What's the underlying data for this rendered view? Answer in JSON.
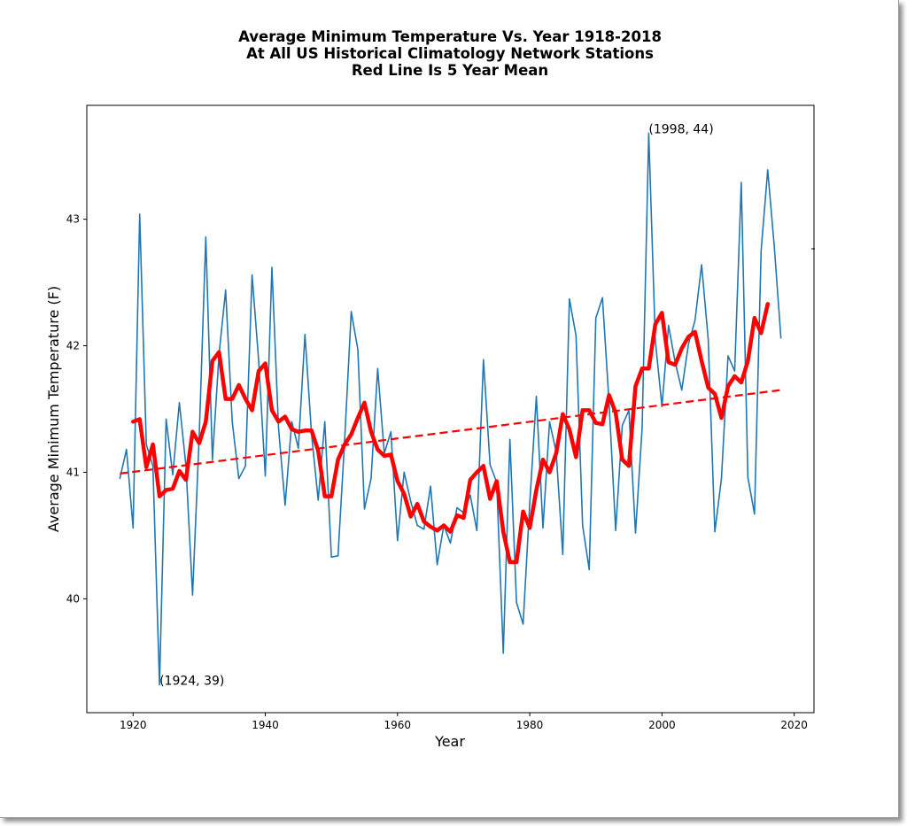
{
  "chart_data": {
    "type": "line",
    "title": [
      "Average Minimum Temperature Vs. Year 1918-2018",
      "At All US Historical Climatology Network Stations",
      "Red Line Is 5 Year Mean"
    ],
    "xlabel": "Year",
    "ylabel": "Average Minimum Temperature (F)",
    "xlim": [
      1913,
      2023
    ],
    "ylim": [
      39.1,
      43.9
    ],
    "xticks": [
      1920,
      1940,
      1960,
      1980,
      2000,
      2020
    ],
    "yticks": [
      40,
      41,
      42,
      43
    ],
    "grid": false,
    "colors": {
      "annual": "#1f77b4",
      "mean": "#ff0000",
      "trend": "#ff0000"
    },
    "annotations": [
      {
        "text": "(1998, 44)",
        "x": 1998,
        "y": 43.68
      },
      {
        "text": "(1924, 39)",
        "x": 1924,
        "y": 39.32
      }
    ],
    "series": [
      {
        "style": "thin-line",
        "x_start": 1918,
        "values": [
          40.95,
          41.18,
          40.56,
          43.04,
          41.22,
          41.05,
          39.32,
          41.42,
          40.98,
          41.55,
          41.05,
          40.03,
          41.28,
          42.86,
          41.1,
          41.93,
          42.44,
          41.4,
          40.95,
          41.05,
          42.56,
          41.88,
          40.97,
          42.62,
          41.35,
          40.74,
          41.4,
          41.19,
          42.09,
          41.3,
          40.78,
          41.4,
          40.33,
          40.34,
          41.25,
          42.27,
          41.97,
          40.71,
          40.95,
          41.82,
          41.15,
          41.32,
          40.46,
          41.0,
          40.77,
          40.58,
          40.55,
          40.89,
          40.27,
          40.58,
          40.44,
          40.72,
          40.68,
          40.82,
          40.54,
          41.89,
          41.06,
          40.92,
          39.57,
          41.26,
          39.97,
          39.8,
          40.75,
          41.6,
          40.56,
          41.4,
          41.16,
          40.35,
          42.37,
          42.08,
          40.58,
          40.23,
          42.22,
          42.38,
          41.55,
          40.54,
          41.37,
          41.49,
          40.52,
          41.35,
          43.68,
          42.04,
          41.52,
          42.16,
          41.87,
          41.65,
          42.01,
          42.2,
          42.64,
          42.05,
          40.53,
          40.95,
          41.92,
          41.8,
          43.29,
          40.96,
          40.67,
          42.75,
          43.39,
          42.78,
          42.06
        ]
      },
      {
        "style": "5-year-mean",
        "x_start": 1920,
        "values": [
          41.4,
          41.42,
          41.04,
          41.22,
          40.81,
          40.86,
          40.87,
          41.01,
          40.94,
          41.32,
          41.23,
          41.4,
          41.88,
          41.95,
          41.58,
          41.58,
          41.69,
          41.58,
          41.49,
          41.8,
          41.86,
          41.49,
          41.4,
          41.44,
          41.34,
          41.32,
          41.33,
          41.33,
          41.17,
          40.81,
          40.81,
          41.1,
          41.22,
          41.3,
          41.43,
          41.55,
          41.32,
          41.18,
          41.13,
          41.14,
          40.93,
          40.83,
          40.65,
          40.75,
          40.61,
          40.57,
          40.54,
          40.58,
          40.53,
          40.66,
          40.64,
          40.94,
          41.0,
          41.05,
          40.79,
          40.93,
          40.53,
          40.29,
          40.29,
          40.69,
          40.56,
          40.86,
          41.1,
          41.0,
          41.15,
          41.46,
          41.34,
          41.12,
          41.49,
          41.49,
          41.39,
          41.38,
          41.61,
          41.47,
          41.1,
          41.05,
          41.68,
          41.82,
          41.82,
          42.17,
          42.26,
          41.87,
          41.85,
          41.98,
          42.07,
          42.11,
          41.88,
          41.67,
          41.62,
          41.43,
          41.68,
          41.76,
          41.71,
          41.88,
          42.22,
          42.1,
          42.33
        ]
      },
      {
        "style": "linear-trend",
        "x": [
          1918,
          2018
        ],
        "values": [
          40.99,
          41.65
        ]
      }
    ]
  }
}
